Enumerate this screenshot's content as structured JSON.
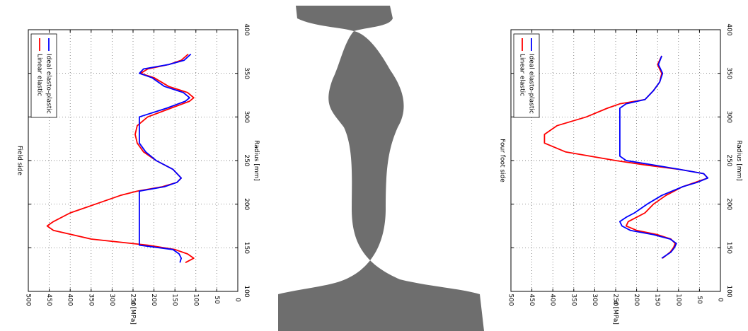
{
  "colors": {
    "linear_elastic": "#ff0000",
    "ideal_elasto_plastic": "#0000ff",
    "rail_section": "#6e6e6e"
  },
  "chart_data": [
    {
      "type": "line",
      "title": "Field side",
      "xlabel": "Radius [mm]",
      "ylabel": "σ [MPa]",
      "xlim": [
        100,
        400
      ],
      "ylim": [
        0,
        500
      ],
      "xticks": [
        "100",
        "150",
        "200",
        "250",
        "300",
        "350",
        "400"
      ],
      "yticks": [
        "0",
        "50",
        "100",
        "150",
        "200",
        "250",
        "300",
        "350",
        "400",
        "450",
        "500"
      ],
      "grid": true,
      "legend_position": "top-left",
      "series": [
        {
          "name": "Linear elastic",
          "x": [
            133,
            138,
            143,
            148,
            153,
            160,
            170,
            175,
            180,
            190,
            200,
            210,
            215,
            220,
            225,
            230,
            240,
            250,
            260,
            270,
            280,
            290,
            300,
            310,
            318,
            322,
            328,
            335,
            345,
            350,
            355,
            360,
            365,
            372
          ],
          "y": [
            125,
            105,
            120,
            150,
            215,
            350,
            440,
            455,
            440,
            400,
            340,
            280,
            240,
            180,
            145,
            135,
            155,
            195,
            225,
            240,
            245,
            240,
            215,
            160,
            115,
            105,
            120,
            165,
            200,
            232,
            215,
            165,
            135,
            118
          ]
        },
        {
          "name": "Ideal elasto-plastic",
          "x": [
            133,
            138,
            143,
            148,
            153,
            160,
            170,
            180,
            190,
            200,
            210,
            215,
            220,
            225,
            230,
            240,
            250,
            260,
            270,
            280,
            290,
            300,
            310,
            318,
            322,
            328,
            335,
            345,
            350,
            355,
            360,
            365,
            372
          ],
          "y": [
            138,
            135,
            140,
            155,
            235,
            235,
            235,
            235,
            235,
            235,
            235,
            235,
            175,
            145,
            135,
            155,
            195,
            220,
            235,
            235,
            235,
            235,
            170,
            125,
            115,
            130,
            175,
            205,
            235,
            225,
            165,
            128,
            112
          ]
        }
      ]
    },
    {
      "type": "line",
      "title": "Four foot side",
      "xlabel": "Radius [mm]",
      "ylabel": "σ [MPa]",
      "xlim": [
        100,
        400
      ],
      "ylim": [
        0,
        500
      ],
      "xticks": [
        "100",
        "150",
        "200",
        "250",
        "300",
        "350",
        "400"
      ],
      "yticks": [
        "0",
        "50",
        "100",
        "150",
        "200",
        "250",
        "300",
        "350",
        "400",
        "450",
        "500"
      ],
      "grid": true,
      "legend_position": "top-left",
      "series": [
        {
          "name": "Linear elastic",
          "x": [
            138,
            145,
            150,
            155,
            160,
            165,
            170,
            175,
            180,
            185,
            190,
            200,
            210,
            220,
            225,
            230,
            235,
            240,
            245,
            250,
            260,
            270,
            280,
            290,
            300,
            310,
            315,
            320,
            330,
            340,
            350,
            360,
            370
          ],
          "y": [
            138,
            120,
            112,
            108,
            118,
            150,
            200,
            225,
            220,
            200,
            180,
            160,
            130,
            90,
            60,
            30,
            40,
            100,
            180,
            250,
            370,
            420,
            420,
            390,
            320,
            270,
            240,
            180,
            160,
            145,
            140,
            150,
            140
          ]
        },
        {
          "name": "Ideal elasto-plastic",
          "x": [
            138,
            145,
            150,
            155,
            160,
            165,
            170,
            175,
            180,
            185,
            190,
            200,
            210,
            220,
            225,
            230,
            235,
            240,
            245,
            250,
            255,
            260,
            270,
            280,
            290,
            300,
            310,
            315,
            320,
            330,
            340,
            350,
            360,
            370
          ],
          "y": [
            140,
            118,
            110,
            105,
            120,
            160,
            215,
            235,
            240,
            225,
            205,
            175,
            140,
            90,
            55,
            30,
            40,
            100,
            160,
            225,
            240,
            240,
            240,
            240,
            240,
            240,
            240,
            225,
            180,
            160,
            145,
            138,
            148,
            140
          ]
        }
      ]
    }
  ]
}
